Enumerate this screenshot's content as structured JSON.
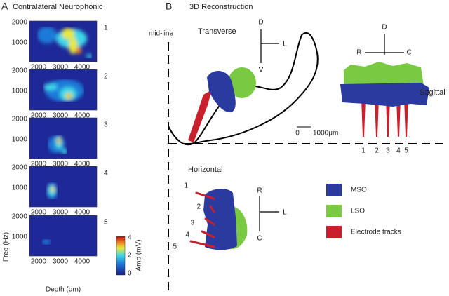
{
  "panel_a": {
    "label": "A",
    "title": "Contralateral Neurophonic",
    "y_label": "Freq (Hz)",
    "x_label": "Depth (μm)",
    "x_ticks": [
      2000,
      3000,
      4000
    ],
    "y_ticks": [
      2000,
      1000
    ],
    "plots": [
      {
        "number": 1
      },
      {
        "number": 2
      },
      {
        "number": 3
      },
      {
        "number": 4
      },
      {
        "number": 5
      }
    ],
    "colorbar": {
      "label": "Amp (mV)",
      "ticks": [
        4,
        2,
        0
      ]
    }
  },
  "panel_b": {
    "label": "B",
    "title": "3D Reconstruction",
    "midline": "mid-line",
    "transverse": {
      "title": "Transverse",
      "axes": {
        "up": "D",
        "right": "L",
        "down": "V"
      }
    },
    "scale_bar": {
      "start": 0,
      "end": "1000μm"
    },
    "sagittal": {
      "title": "Sagittal",
      "axes": {
        "up": "D",
        "left": "R",
        "right": "C"
      },
      "tracks": [
        1,
        2,
        3,
        4,
        5
      ]
    },
    "horizontal": {
      "title": "Horizontal",
      "axes": {
        "up": "R",
        "right": "L",
        "down": "C"
      },
      "tracks": [
        1,
        2,
        3,
        4,
        5
      ]
    },
    "legend": [
      {
        "label": "MSO",
        "color": "#2b3a9e"
      },
      {
        "label": "LSO",
        "color": "#7ac943"
      },
      {
        "label": "Electrode tracks",
        "color": "#c8202c"
      }
    ]
  }
}
